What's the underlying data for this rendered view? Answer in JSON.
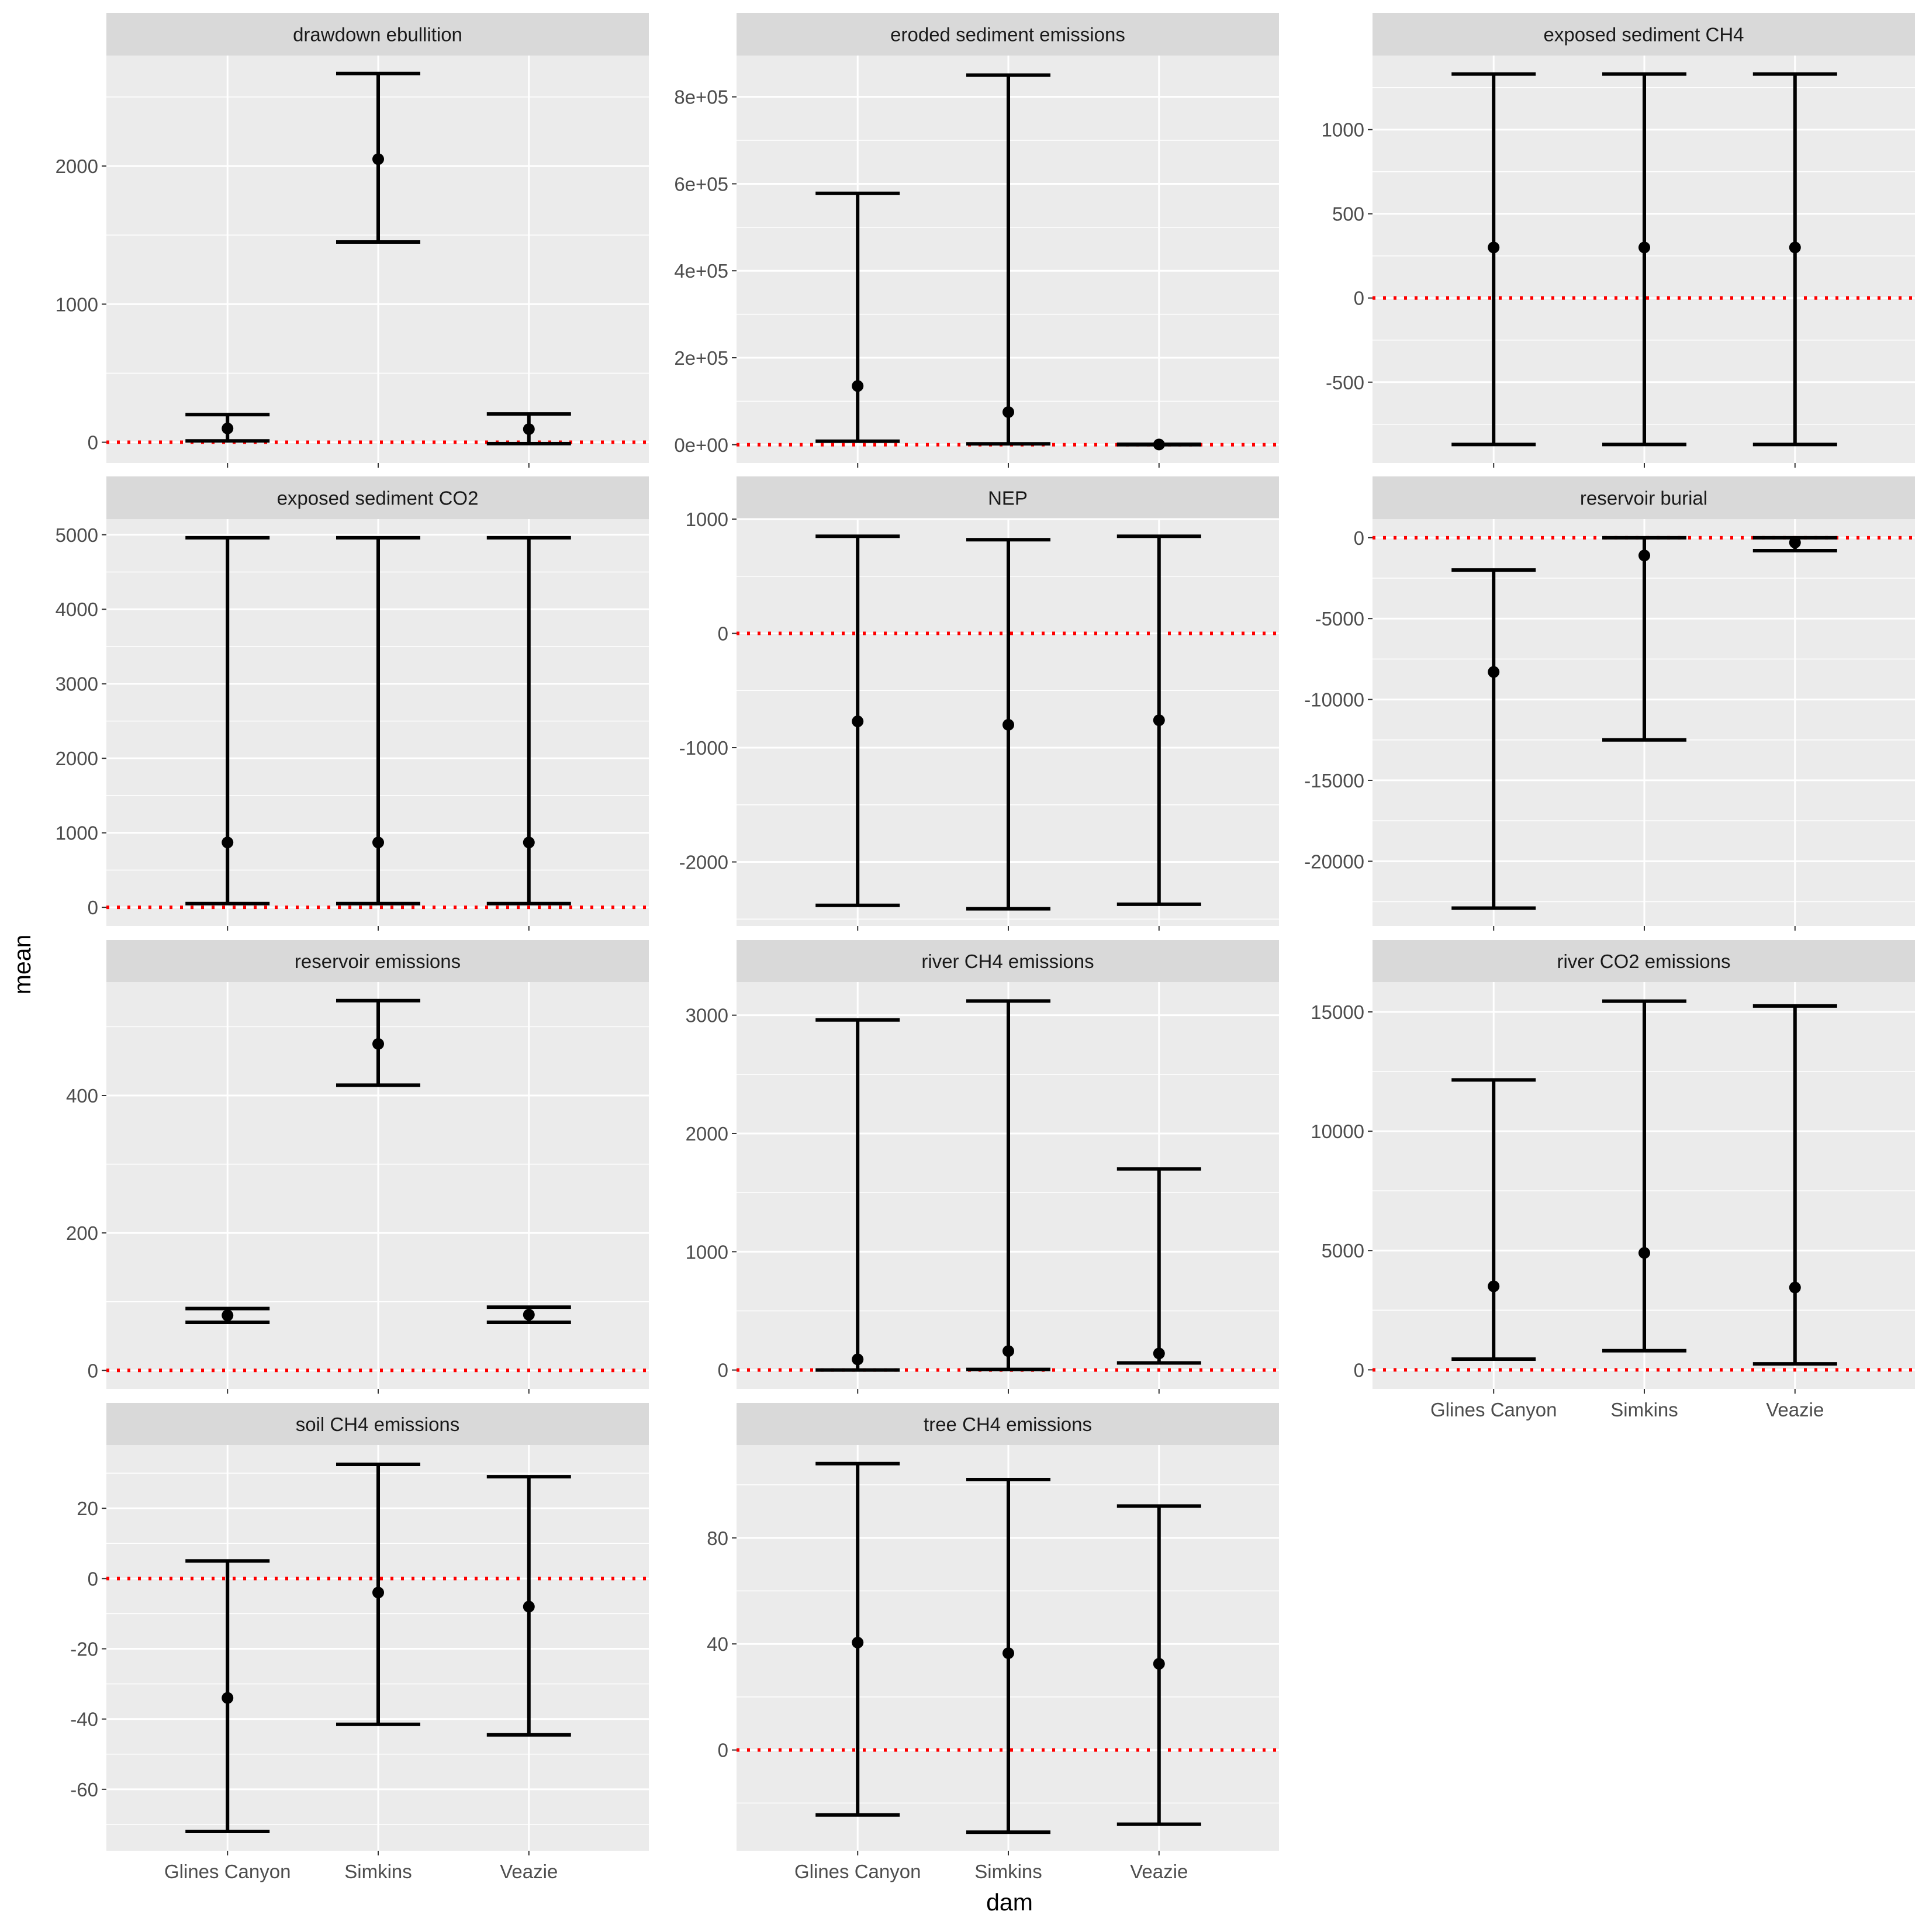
{
  "x_axis_title": "dam",
  "y_axis_title": "mean",
  "dams": [
    "Glines Canyon",
    "Simkins",
    "Veazie"
  ],
  "colors": {
    "panel_background": "#ebebeb",
    "strip_background": "#d9d9d9",
    "grid": "#ffffff",
    "reference_line": "#ff0000",
    "marks": "#000000",
    "tick_text": "#4d4d4d"
  },
  "chart_data": [
    {
      "type": "errorbar",
      "title": "drawdown ebullition",
      "categories": [
        "Glines Canyon",
        "Simkins",
        "Veazie"
      ],
      "mean": [
        100,
        2050,
        95
      ],
      "lower": [
        10,
        1450,
        -10
      ],
      "upper": [
        200,
        2670,
        205
      ],
      "yticks": [
        0,
        1000,
        2000
      ],
      "ytick_labels": [
        "0",
        "1000",
        "2000"
      ],
      "ylim": [
        -150,
        2800
      ],
      "reference_line": 0
    },
    {
      "type": "errorbar",
      "title": "eroded sediment emissions",
      "categories": [
        "Glines Canyon",
        "Simkins",
        "Veazie"
      ],
      "mean": [
        135000,
        75000,
        500
      ],
      "lower": [
        8000,
        2000,
        0
      ],
      "upper": [
        578000,
        850000,
        1000
      ],
      "yticks": [
        0,
        200000,
        400000,
        600000,
        800000
      ],
      "ytick_labels": [
        "0e+00",
        "2e+05",
        "4e+05",
        "6e+05",
        "8e+05"
      ],
      "ylim": [
        -42000,
        895000
      ],
      "reference_line": 0
    },
    {
      "type": "errorbar",
      "title": "exposed sediment CH4",
      "categories": [
        "Glines Canyon",
        "Simkins",
        "Veazie"
      ],
      "mean": [
        300,
        300,
        300
      ],
      "lower": [
        -870,
        -870,
        -870
      ],
      "upper": [
        1330,
        1330,
        1330
      ],
      "yticks": [
        -500,
        0,
        500,
        1000
      ],
      "ytick_labels": [
        "-500",
        "0",
        "500",
        "1000"
      ],
      "ylim": [
        -980,
        1440
      ],
      "reference_line": 0
    },
    {
      "type": "errorbar",
      "title": "exposed sediment CO2",
      "categories": [
        "Glines Canyon",
        "Simkins",
        "Veazie"
      ],
      "mean": [
        870,
        870,
        870
      ],
      "lower": [
        50,
        50,
        50
      ],
      "upper": [
        4960,
        4960,
        4960
      ],
      "yticks": [
        0,
        1000,
        2000,
        3000,
        4000,
        5000
      ],
      "ytick_labels": [
        "0",
        "1000",
        "2000",
        "3000",
        "4000",
        "5000"
      ],
      "ylim": [
        -250,
        5210
      ],
      "reference_line": 0
    },
    {
      "type": "errorbar",
      "title": "NEP",
      "categories": [
        "Glines Canyon",
        "Simkins",
        "Veazie"
      ],
      "mean": [
        -770,
        -800,
        -760
      ],
      "lower": [
        -2380,
        -2410,
        -2370
      ],
      "upper": [
        850,
        820,
        850
      ],
      "yticks": [
        -2000,
        -1000,
        0,
        1000
      ],
      "ytick_labels": [
        "-2000",
        "-1000",
        "0",
        "1000"
      ],
      "ylim": [
        -2560,
        1000
      ],
      "reference_line": 0
    },
    {
      "type": "errorbar",
      "title": "reservoir burial",
      "categories": [
        "Glines Canyon",
        "Simkins",
        "Veazie"
      ],
      "mean": [
        -8300,
        -1100,
        -300
      ],
      "lower": [
        -22900,
        -12500,
        -800
      ],
      "upper": [
        -2000,
        0,
        0
      ],
      "yticks": [
        -20000,
        -15000,
        -10000,
        -5000,
        0
      ],
      "ytick_labels": [
        "-20000",
        "-15000",
        "-10000",
        "-5000",
        "0"
      ],
      "ylim": [
        -24000,
        1150
      ],
      "reference_line": 0
    },
    {
      "type": "errorbar",
      "title": "reservoir emissions",
      "categories": [
        "Glines Canyon",
        "Simkins",
        "Veazie"
      ],
      "mean": [
        80,
        475,
        81
      ],
      "lower": [
        70,
        415,
        70
      ],
      "upper": [
        90,
        538,
        92
      ],
      "yticks": [
        0,
        200,
        400
      ],
      "ytick_labels": [
        "0",
        "200",
        "400"
      ],
      "ylim": [
        -27,
        565
      ],
      "reference_line": 0
    },
    {
      "type": "errorbar",
      "title": "river CH4 emissions",
      "categories": [
        "Glines Canyon",
        "Simkins",
        "Veazie"
      ],
      "mean": [
        90,
        160,
        140
      ],
      "lower": [
        0,
        5,
        60
      ],
      "upper": [
        2960,
        3120,
        1700
      ],
      "yticks": [
        0,
        1000,
        2000,
        3000
      ],
      "ytick_labels": [
        "0",
        "1000",
        "2000",
        "3000"
      ],
      "ylim": [
        -160,
        3280
      ],
      "reference_line": 0
    },
    {
      "type": "errorbar",
      "title": "river CO2 emissions",
      "categories": [
        "Glines Canyon",
        "Simkins",
        "Veazie"
      ],
      "mean": [
        3500,
        4900,
        3450
      ],
      "lower": [
        450,
        800,
        250
      ],
      "upper": [
        12150,
        15450,
        15250
      ],
      "yticks": [
        0,
        5000,
        10000,
        15000
      ],
      "ytick_labels": [
        "0",
        "5000",
        "10000",
        "15000"
      ],
      "ylim": [
        -800,
        16250
      ],
      "reference_line": 0
    },
    {
      "type": "errorbar",
      "title": "soil CH4 emissions",
      "categories": [
        "Glines Canyon",
        "Simkins",
        "Veazie"
      ],
      "mean": [
        -34,
        -4,
        -8
      ],
      "lower": [
        -72,
        -41.5,
        -44.5
      ],
      "upper": [
        5,
        32.5,
        29
      ],
      "yticks": [
        -60,
        -40,
        -20,
        0,
        20
      ],
      "ytick_labels": [
        "-60",
        "-40",
        "-20",
        "0",
        "20"
      ],
      "ylim": [
        -77.5,
        38
      ],
      "reference_line": 0
    },
    {
      "type": "errorbar",
      "title": "tree CH4 emissions",
      "categories": [
        "Glines Canyon",
        "Simkins",
        "Veazie"
      ],
      "mean": [
        40.5,
        36.5,
        32.5
      ],
      "lower": [
        -24.5,
        -31,
        -28
      ],
      "upper": [
        108,
        102,
        92
      ],
      "yticks": [
        0,
        40,
        80
      ],
      "ytick_labels": [
        "0",
        "40",
        "80"
      ],
      "ylim": [
        -38,
        115
      ],
      "reference_line": 0
    }
  ]
}
